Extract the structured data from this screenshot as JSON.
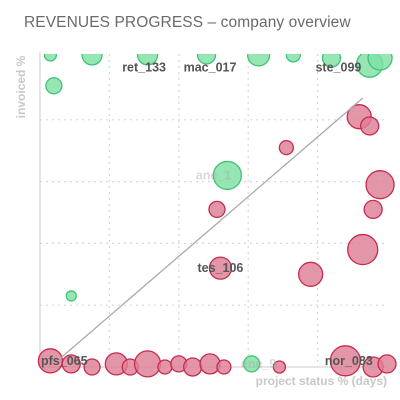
{
  "chart_data": {
    "type": "scatter",
    "title": "REVENUES PROGRESS – company overview",
    "xlabel": "project status % (days)",
    "ylabel": "invoiced %",
    "xlim": [
      0,
      100
    ],
    "ylim": [
      0,
      100
    ],
    "grid": true,
    "reference_line": {
      "from": [
        5,
        2
      ],
      "to": [
        93,
        87
      ]
    },
    "colors": {
      "over": "#7fe0a4",
      "over_stroke": "#41c377",
      "under": "#de7f96",
      "under_stroke": "#c72a4f",
      "line": "#a9a9a9",
      "grid": "#d7d7d7",
      "axis": "#cccccc",
      "label": "#555555",
      "faint_label": "#aaaaaa",
      "title": "#6a6a6a"
    },
    "series": [
      {
        "status": "over",
        "points": [
          {
            "x": 3,
            "y": 101,
            "r": 6
          },
          {
            "x": 15,
            "y": 101,
            "r": 10
          },
          {
            "x": 31,
            "y": 101,
            "r": 10
          },
          {
            "x": 48,
            "y": 101,
            "r": 9
          },
          {
            "x": 63,
            "y": 101,
            "r": 11
          },
          {
            "x": 73,
            "y": 101,
            "r": 7
          },
          {
            "x": 84,
            "y": 100,
            "r": 9
          },
          {
            "x": 95,
            "y": 98,
            "r": 13
          },
          {
            "x": 98,
            "y": 100,
            "r": 12
          },
          {
            "x": 4,
            "y": 91,
            "r": 8
          },
          {
            "x": 54,
            "y": 62,
            "r": 14,
            "label": "ane_1"
          },
          {
            "x": 9,
            "y": 23,
            "r": 5
          },
          {
            "x": 61,
            "y": 1,
            "r": 8,
            "label": "ene_9"
          }
        ]
      },
      {
        "status": "under",
        "points": [
          {
            "x": 92,
            "y": 81,
            "r": 12
          },
          {
            "x": 95,
            "y": 78,
            "r": 9
          },
          {
            "x": 71,
            "y": 71,
            "r": 7
          },
          {
            "x": 98,
            "y": 59,
            "r": 14
          },
          {
            "x": 96,
            "y": 51,
            "r": 9
          },
          {
            "x": 51,
            "y": 51,
            "r": 8
          },
          {
            "x": 93,
            "y": 38,
            "r": 15
          },
          {
            "x": 52,
            "y": 32,
            "r": 11,
            "label": "tes_106"
          },
          {
            "x": 78,
            "y": 30,
            "r": 12
          },
          {
            "x": 3,
            "y": 2,
            "r": 12,
            "label": "pfs_065"
          },
          {
            "x": 9,
            "y": 1,
            "r": 9
          },
          {
            "x": 15,
            "y": 0,
            "r": 8
          },
          {
            "x": 22,
            "y": 1,
            "r": 11
          },
          {
            "x": 26,
            "y": 0,
            "r": 8
          },
          {
            "x": 31,
            "y": 1,
            "r": 13
          },
          {
            "x": 36,
            "y": 0,
            "r": 7
          },
          {
            "x": 40,
            "y": 1,
            "r": 8
          },
          {
            "x": 44,
            "y": 0,
            "r": 9
          },
          {
            "x": 49,
            "y": 1,
            "r": 10
          },
          {
            "x": 53,
            "y": 0,
            "r": 7
          },
          {
            "x": 69,
            "y": 0,
            "r": 6
          },
          {
            "x": 88,
            "y": 2,
            "r": 15,
            "label": "nor_083"
          },
          {
            "x": 96,
            "y": 0,
            "r": 10
          },
          {
            "x": 100,
            "y": 1,
            "r": 9
          }
        ]
      }
    ],
    "labels": [
      {
        "text": "ret_133",
        "x": 30,
        "y": 97
      },
      {
        "text": "mac_017",
        "x": 49,
        "y": 97
      },
      {
        "text": "ste_099",
        "x": 86,
        "y": 97
      },
      {
        "text": "tes_106",
        "x": 52,
        "y": 32
      },
      {
        "text": "pfs_065",
        "x": 7,
        "y": 2
      },
      {
        "text": "nor_083",
        "x": 89,
        "y": 2
      },
      {
        "text": "ane_1",
        "x": 50,
        "y": 62,
        "faint": true
      },
      {
        "text": "ene_9",
        "x": 63,
        "y": 1,
        "faint": true
      }
    ]
  }
}
